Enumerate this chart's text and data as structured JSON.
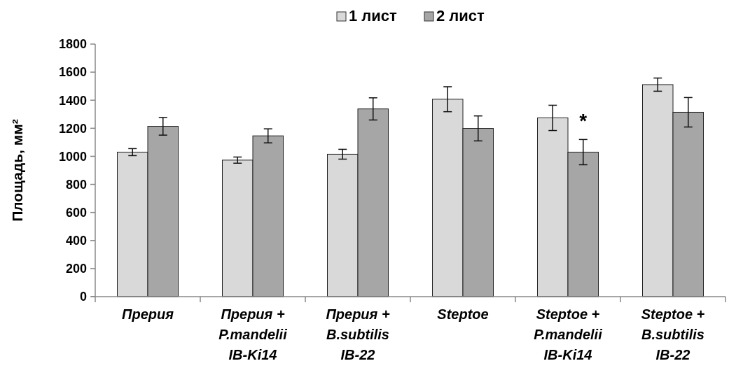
{
  "chart_data": {
    "type": "bar",
    "ylabel": "Площадь, мм²",
    "categories": [
      "Прерия",
      "Прерия +\nP.mandelii\nIB-Ki14",
      "Прерия +\nB.subtilis\nIB-22",
      "Steptoe",
      "Steptoe +\nP.mandelii\nIB-Ki14",
      "Steptoe +\nB.subtilis\nIB-22"
    ],
    "series": [
      {
        "name": "1 лист",
        "color": "#d9d9d9",
        "values": [
          1030,
          973,
          1015,
          1407,
          1274,
          1511
        ],
        "errors": [
          25,
          22,
          35,
          89,
          90,
          47
        ]
      },
      {
        "name": "2 лист",
        "color": "#a6a6a6",
        "values": [
          1214,
          1146,
          1338,
          1199,
          1030,
          1314
        ],
        "errors": [
          63,
          50,
          79,
          89,
          90,
          105
        ]
      }
    ],
    "ylim": [
      0,
      1800
    ],
    "yticks": [
      0,
      200,
      400,
      600,
      800,
      1000,
      1200,
      1400,
      1600,
      1800
    ],
    "annotations": [
      {
        "text": "*",
        "x": "Steptoe +\nP.mandelii\nIB-Ki14",
        "y": 1290
      }
    ],
    "legend": "top",
    "grid": false
  }
}
